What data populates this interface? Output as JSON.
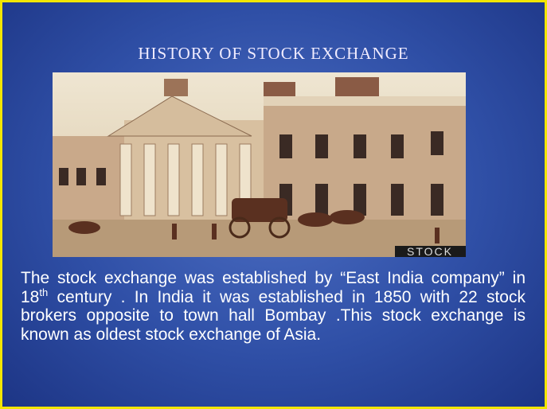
{
  "slide": {
    "title": "HISTORY OF STOCK EXCHANGE",
    "image": {
      "watermark": "STOCK"
    },
    "body": [
      "The stock exchange was established by “East India company” in 18",
      "th",
      " century . In India it was established in 1850 with 22 stock brokers opposite to town hall Bombay .This stock  exchange is known as oldest stock exchange of Asia."
    ]
  }
}
